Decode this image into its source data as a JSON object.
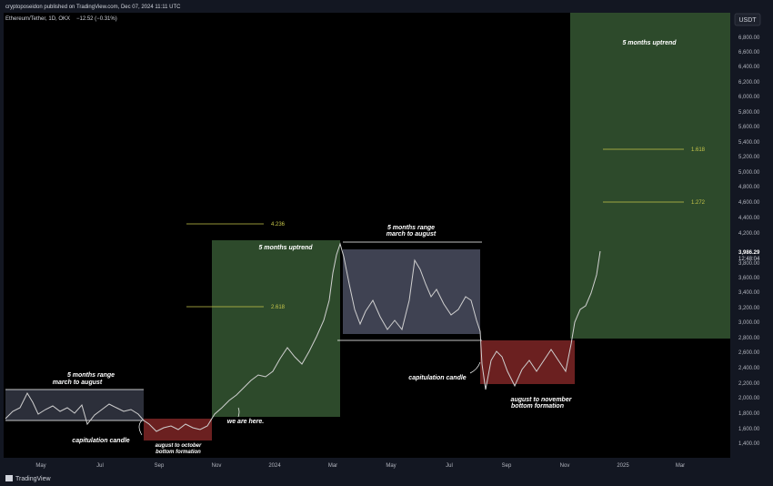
{
  "header": {
    "publisher": "cryptoposeidon published on TradingView.com, Dec 07, 2024 11:11 UTC",
    "symbol": "Ethereum/Tether, 1D, OKX",
    "change": "−12.52 (−0.31%)"
  },
  "currency": "USDT",
  "price_axis": [
    "6,800.00",
    "6,600.00",
    "6,400.00",
    "6,200.00",
    "6,000.00",
    "5,800.00",
    "5,600.00",
    "5,400.00",
    "5,200.00",
    "5,000.00",
    "4,800.00",
    "4,600.00",
    "4,400.00",
    "4,200.00",
    "3,800.00",
    "3,600.00",
    "3,400.00",
    "3,200.00",
    "3,000.00",
    "2,800.00",
    "2,600.00",
    "2,400.00",
    "2,200.00",
    "2,000.00",
    "1,800.00",
    "1,600.00",
    "1,400.00"
  ],
  "last_price": {
    "price": "3,986.29",
    "countdown": "12:48:04"
  },
  "time_axis": [
    "May",
    "Jul",
    "Sep",
    "Nov",
    "2024",
    "Mar",
    "May",
    "Jul",
    "Sep",
    "Nov",
    "2025",
    "Mar"
  ],
  "annotations": {
    "range1_title": "5 months range",
    "range1_sub": "march to august",
    "cap1": "capitulation candle",
    "bottom1_a": "august to october",
    "bottom1_b": "bottom formation",
    "uptrend1": "5 months uptrend",
    "we_are_here": "we are here.",
    "range2_title": "5 months range",
    "range2_sub": "march to august",
    "cap2": "capitulation candle",
    "bottom2_a": "august to november",
    "bottom2_b": "bottom formation",
    "uptrend2": "5 months uptrend"
  },
  "fib_levels": {
    "a": "4.236",
    "b": "2.618",
    "c": "1.618",
    "d": "1.272"
  },
  "footer": {
    "brand": "TradingView"
  },
  "colors": {
    "background": "#000000",
    "green_zone": "#2d4a2b",
    "red_zone": "#6b2020",
    "grey_zone": "#3f4252",
    "fib_line": "#c6c64a",
    "price_line": "#d0d0d0"
  }
}
